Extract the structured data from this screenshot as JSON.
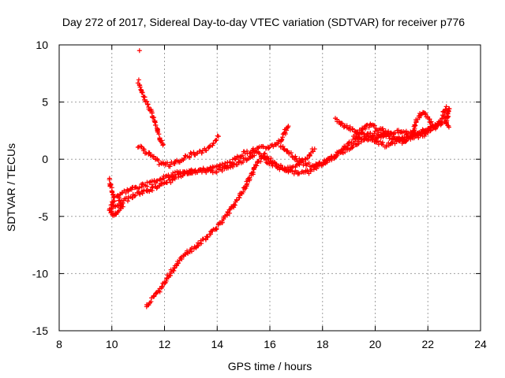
{
  "chart_data": {
    "type": "scatter",
    "title": "Day 272 of 2017, Sidereal Day-to-day VTEC variation (SDTVAR) for receiver p776",
    "xlabel": "GPS time / hours",
    "ylabel": "SDTVAR / TECUs",
    "xlim": [
      8,
      24
    ],
    "ylim": [
      -15,
      10
    ],
    "xticks": [
      8,
      10,
      12,
      14,
      16,
      18,
      20,
      22,
      24
    ],
    "yticks": [
      -15,
      -10,
      -5,
      0,
      5,
      10
    ],
    "grid": true,
    "marker": "plus",
    "color": "#ff0000",
    "series": [
      {
        "points": [
          [
            11.05,
            9.5
          ]
        ]
      },
      {
        "points": [
          [
            11.0,
            6.8
          ],
          [
            11.2,
            5.6
          ],
          [
            11.4,
            4.6
          ],
          [
            11.6,
            3.5
          ],
          [
            11.8,
            2.0
          ],
          [
            11.95,
            1.3
          ]
        ]
      },
      {
        "points": [
          [
            11.0,
            1.2
          ],
          [
            11.4,
            0.5
          ],
          [
            11.8,
            -0.3
          ],
          [
            12.2,
            -0.5
          ],
          [
            12.6,
            -0.1
          ],
          [
            13.0,
            0.4
          ],
          [
            13.4,
            0.6
          ],
          [
            13.8,
            1.2
          ],
          [
            14.05,
            2.0
          ]
        ]
      },
      {
        "points": [
          [
            9.9,
            -1.8
          ],
          [
            10.0,
            -2.6
          ],
          [
            10.1,
            -3.6
          ],
          [
            9.9,
            -4.4
          ],
          [
            10.1,
            -4.9
          ],
          [
            10.4,
            -4.2
          ],
          [
            10.2,
            -3.1
          ],
          [
            10.6,
            -2.7
          ],
          [
            11.0,
            -2.4
          ],
          [
            11.5,
            -2.1
          ],
          [
            12.0,
            -1.6
          ],
          [
            12.5,
            -1.2
          ],
          [
            13.0,
            -1.1
          ],
          [
            13.5,
            -0.9
          ],
          [
            14.0,
            -0.7
          ],
          [
            14.5,
            -0.3
          ],
          [
            15.0,
            0.5
          ],
          [
            15.5,
            0.9
          ],
          [
            16.0,
            1.1
          ],
          [
            16.4,
            1.6
          ],
          [
            16.7,
            2.9
          ]
        ]
      },
      {
        "points": [
          [
            10.0,
            -4.3
          ],
          [
            10.5,
            -3.6
          ],
          [
            11.0,
            -3.0
          ],
          [
            11.5,
            -2.6
          ],
          [
            12.0,
            -2.2
          ],
          [
            12.5,
            -1.5
          ],
          [
            13.0,
            -1.1
          ],
          [
            13.5,
            -1.0
          ],
          [
            14.0,
            -1.0
          ],
          [
            14.5,
            -0.6
          ],
          [
            15.0,
            -0.1
          ],
          [
            15.5,
            0.6
          ],
          [
            16.0,
            -0.3
          ],
          [
            16.5,
            -0.9
          ],
          [
            17.0,
            -1.2
          ],
          [
            17.5,
            -1.1
          ],
          [
            18.0,
            -0.3
          ],
          [
            18.5,
            0.3
          ],
          [
            19.0,
            1.0
          ],
          [
            19.5,
            1.6
          ],
          [
            20.0,
            1.9
          ],
          [
            20.5,
            2.3
          ],
          [
            21.0,
            2.4
          ],
          [
            21.5,
            2.3
          ],
          [
            22.0,
            2.6
          ],
          [
            22.3,
            3.0
          ]
        ]
      },
      {
        "points": [
          [
            11.3,
            -12.8
          ],
          [
            11.6,
            -12.1
          ],
          [
            11.9,
            -11.2
          ],
          [
            12.2,
            -10.0
          ],
          [
            12.5,
            -9.0
          ],
          [
            12.8,
            -8.3
          ],
          [
            13.2,
            -7.6
          ],
          [
            13.6,
            -6.8
          ],
          [
            14.0,
            -5.9
          ],
          [
            14.4,
            -4.8
          ],
          [
            14.8,
            -3.5
          ],
          [
            15.2,
            -1.8
          ],
          [
            15.5,
            -0.4
          ],
          [
            15.8,
            0.4
          ],
          [
            16.2,
            -0.4
          ],
          [
            16.6,
            -0.9
          ],
          [
            17.0,
            -0.6
          ],
          [
            17.4,
            0.1
          ],
          [
            17.7,
            0.9
          ]
        ]
      },
      {
        "points": [
          [
            16.4,
            1.2
          ],
          [
            16.8,
            0.4
          ],
          [
            17.2,
            -0.3
          ],
          [
            17.6,
            -0.6
          ],
          [
            18.0,
            -0.4
          ],
          [
            18.5,
            0.4
          ],
          [
            19.0,
            1.4
          ],
          [
            19.5,
            1.9
          ],
          [
            20.0,
            2.3
          ],
          [
            20.5,
            2.0
          ],
          [
            21.0,
            1.6
          ],
          [
            21.5,
            1.9
          ],
          [
            22.0,
            2.3
          ]
        ]
      },
      {
        "points": [
          [
            18.5,
            3.5
          ],
          [
            18.8,
            2.9
          ],
          [
            19.2,
            2.5
          ],
          [
            19.6,
            2.1
          ],
          [
            20.0,
            1.6
          ],
          [
            20.4,
            1.2
          ],
          [
            20.8,
            1.6
          ],
          [
            21.2,
            2.0
          ],
          [
            21.6,
            2.2
          ],
          [
            22.0,
            2.6
          ],
          [
            22.3,
            2.8
          ],
          [
            22.5,
            3.2
          ],
          [
            22.7,
            3.6
          ],
          [
            22.8,
            4.4
          ],
          [
            22.7,
            3.1
          ],
          [
            22.8,
            2.8
          ]
        ]
      },
      {
        "points": [
          [
            19.2,
            1.9
          ],
          [
            19.5,
            2.6
          ],
          [
            19.8,
            3.0
          ],
          [
            20.2,
            2.6
          ],
          [
            20.6,
            2.2
          ],
          [
            21.0,
            1.5
          ],
          [
            21.4,
            2.0
          ],
          [
            21.6,
            3.6
          ],
          [
            21.8,
            4.1
          ],
          [
            22.0,
            3.6
          ],
          [
            22.3,
            2.6
          ],
          [
            22.5,
            3.5
          ],
          [
            22.7,
            4.6
          ]
        ]
      }
    ]
  }
}
